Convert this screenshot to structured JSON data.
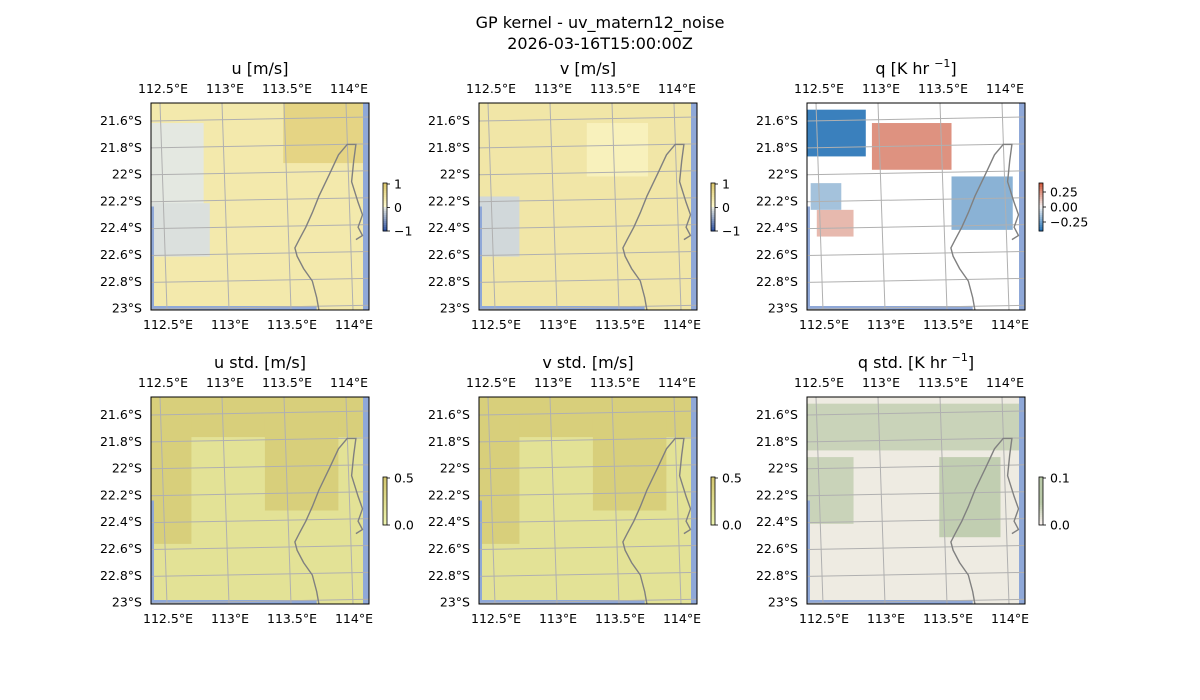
{
  "figure": {
    "title_line1": "GP kernel - uv_matern12_noise",
    "title_line2": "2026-03-16T15:00:00Z"
  },
  "colors": {
    "ocean": "#8fa8d8",
    "coast": "#808080",
    "grid": "#b0b0b0",
    "frame": "#000000"
  },
  "chart_data": [
    {
      "type": "heatmap",
      "name": "u",
      "title": "u [m/s]",
      "colormap": "diverging-blue-yellow",
      "colorbar_ticks": [
        "1",
        "0",
        "−1"
      ],
      "clim": [
        -1,
        1
      ],
      "x_ticks": [
        "112.5°E",
        "113°E",
        "113.5°E",
        "114°E"
      ],
      "y_ticks": [
        "21.6°S",
        "21.8°S",
        "22°S",
        "22.2°S",
        "22.4°S",
        "22.6°S",
        "22.8°S",
        "23°S"
      ],
      "xlim": [
        112.42,
        114.2
      ],
      "ylim": [
        -23.0,
        -21.45
      ],
      "field_regions": [
        {
          "label": "background",
          "lon": [
            112.42,
            114.2
          ],
          "lat": [
            -23.0,
            -21.45
          ],
          "value": 0.35
        },
        {
          "label": "ne-high",
          "lon": [
            113.5,
            114.2
          ],
          "lat": [
            -21.9,
            -21.45
          ],
          "value": 0.75
        },
        {
          "label": "west-low",
          "lon": [
            112.42,
            112.85
          ],
          "lat": [
            -22.5,
            -21.6
          ],
          "value": -0.05
        },
        {
          "label": "sw-low",
          "lon": [
            112.42,
            112.9
          ],
          "lat": [
            -22.6,
            -22.2
          ],
          "value": -0.1
        }
      ]
    },
    {
      "type": "heatmap",
      "name": "v",
      "title": "v [m/s]",
      "colormap": "diverging-blue-yellow",
      "colorbar_ticks": [
        "1",
        "0",
        "−1"
      ],
      "clim": [
        -1,
        1
      ],
      "x_ticks": [
        "112.5°E",
        "113°E",
        "113.5°E",
        "114°E"
      ],
      "y_ticks": [
        "21.6°S",
        "21.8°S",
        "22°S",
        "22.2°S",
        "22.4°S",
        "22.6°S",
        "22.8°S",
        "23°S"
      ],
      "xlim": [
        112.42,
        114.2
      ],
      "ylim": [
        -23.0,
        -21.45
      ],
      "field_regions": [
        {
          "label": "background",
          "lon": [
            112.42,
            114.2
          ],
          "lat": [
            -23.0,
            -21.45
          ],
          "value": 0.4
        },
        {
          "label": "sw-low",
          "lon": [
            112.42,
            112.75
          ],
          "lat": [
            -22.6,
            -22.15
          ],
          "value": -0.15
        },
        {
          "label": "center-high",
          "lon": [
            113.3,
            113.8
          ],
          "lat": [
            -22.0,
            -21.6
          ],
          "value": 0.2
        }
      ]
    },
    {
      "type": "heatmap",
      "name": "q",
      "title": "q [K hr ",
      "title_sup": "−1",
      "title_end": "]",
      "colormap": "diverging-blue-white-red",
      "colorbar_ticks": [
        "0.25",
        "0.00",
        "−0.25"
      ],
      "clim": [
        -0.4,
        0.4
      ],
      "x_ticks": [
        "112.5°E",
        "113°E",
        "113.5°E",
        "114°E"
      ],
      "y_ticks": [
        "21.6°S",
        "21.8°S",
        "22°S",
        "22.2°S",
        "22.4°S",
        "22.6°S",
        "22.8°S",
        "23°S"
      ],
      "xlim": [
        112.42,
        114.2
      ],
      "ylim": [
        -23.0,
        -21.45
      ],
      "field_regions": [
        {
          "label": "nw-negative",
          "lon": [
            112.42,
            112.9
          ],
          "lat": [
            -21.85,
            -21.5
          ],
          "value": -0.35
        },
        {
          "label": "center-positive",
          "lon": [
            112.95,
            113.6
          ],
          "lat": [
            -21.95,
            -21.6
          ],
          "value": 0.25
        },
        {
          "label": "east-negative",
          "lon": [
            113.6,
            114.1
          ],
          "lat": [
            -22.4,
            -22.0
          ],
          "value": -0.2
        },
        {
          "label": "sw-positive",
          "lon": [
            112.5,
            112.8
          ],
          "lat": [
            -22.45,
            -22.25
          ],
          "value": 0.15
        },
        {
          "label": "west-negative",
          "lon": [
            112.45,
            112.7
          ],
          "lat": [
            -22.25,
            -22.05
          ],
          "value": -0.15
        }
      ]
    },
    {
      "type": "heatmap",
      "name": "u_std",
      "title": "u std. [m/s]",
      "colormap": "sequential-olive",
      "colorbar_ticks": [
        "0.5",
        "0.0"
      ],
      "clim": [
        0,
        0.5
      ],
      "x_ticks": [
        "112.5°E",
        "113°E",
        "113.5°E",
        "114°E"
      ],
      "y_ticks": [
        "21.6°S",
        "21.8°S",
        "22°S",
        "22.2°S",
        "22.4°S",
        "22.6°S",
        "22.8°S",
        "23°S"
      ],
      "xlim": [
        112.42,
        114.2
      ],
      "ylim": [
        -23.0,
        -21.45
      ],
      "field_regions": [
        {
          "label": "background",
          "lon": [
            112.42,
            114.2
          ],
          "lat": [
            -23.0,
            -21.45
          ],
          "value": 0.2
        },
        {
          "label": "north-band",
          "lon": [
            112.42,
            114.2
          ],
          "lat": [
            -21.75,
            -21.45
          ],
          "value": 0.4
        },
        {
          "label": "west-block",
          "lon": [
            112.42,
            112.75
          ],
          "lat": [
            -22.55,
            -21.6
          ],
          "value": 0.4
        },
        {
          "label": "ne-block",
          "lon": [
            113.35,
            113.95
          ],
          "lat": [
            -22.3,
            -21.6
          ],
          "value": 0.4
        }
      ]
    },
    {
      "type": "heatmap",
      "name": "v_std",
      "title": "v std. [m/s]",
      "colormap": "sequential-olive",
      "colorbar_ticks": [
        "0.5",
        "0.0"
      ],
      "clim": [
        0,
        0.5
      ],
      "x_ticks": [
        "112.5°E",
        "113°E",
        "113.5°E",
        "114°E"
      ],
      "y_ticks": [
        "21.6°S",
        "21.8°S",
        "22°S",
        "22.2°S",
        "22.4°S",
        "22.6°S",
        "22.8°S",
        "23°S"
      ],
      "xlim": [
        112.42,
        114.2
      ],
      "ylim": [
        -23.0,
        -21.45
      ],
      "field_regions": [
        {
          "label": "background",
          "lon": [
            112.42,
            114.2
          ],
          "lat": [
            -23.0,
            -21.45
          ],
          "value": 0.2
        },
        {
          "label": "north-band",
          "lon": [
            112.42,
            114.2
          ],
          "lat": [
            -21.75,
            -21.45
          ],
          "value": 0.4
        },
        {
          "label": "west-block",
          "lon": [
            112.42,
            112.75
          ],
          "lat": [
            -22.55,
            -21.6
          ],
          "value": 0.4
        },
        {
          "label": "ne-block",
          "lon": [
            113.35,
            113.95
          ],
          "lat": [
            -22.3,
            -21.6
          ],
          "value": 0.4
        }
      ]
    },
    {
      "type": "heatmap",
      "name": "q_std",
      "title": "q std. [K hr ",
      "title_sup": "−1",
      "title_end": "]",
      "colormap": "sequential-pink-green",
      "colorbar_ticks": [
        "0.1",
        "0.0"
      ],
      "clim": [
        0,
        0.1
      ],
      "x_ticks": [
        "112.5°E",
        "113°E",
        "113.5°E",
        "114°E"
      ],
      "y_ticks": [
        "21.6°S",
        "21.8°S",
        "22°S",
        "22.2°S",
        "22.4°S",
        "22.6°S",
        "22.8°S",
        "23°S"
      ],
      "xlim": [
        112.42,
        114.2
      ],
      "ylim": [
        -23.0,
        -21.45
      ],
      "field_regions": [
        {
          "label": "background",
          "lon": [
            112.42,
            114.2
          ],
          "lat": [
            -23.0,
            -21.45
          ],
          "value": 0.01
        },
        {
          "label": "north-band",
          "lon": [
            112.42,
            114.2
          ],
          "lat": [
            -21.85,
            -21.5
          ],
          "value": 0.035
        },
        {
          "label": "west-block",
          "lon": [
            112.42,
            112.8
          ],
          "lat": [
            -22.4,
            -21.9
          ],
          "value": 0.035
        },
        {
          "label": "ne-block",
          "lon": [
            113.5,
            114.0
          ],
          "lat": [
            -22.5,
            -21.9
          ],
          "value": 0.04
        }
      ]
    }
  ]
}
